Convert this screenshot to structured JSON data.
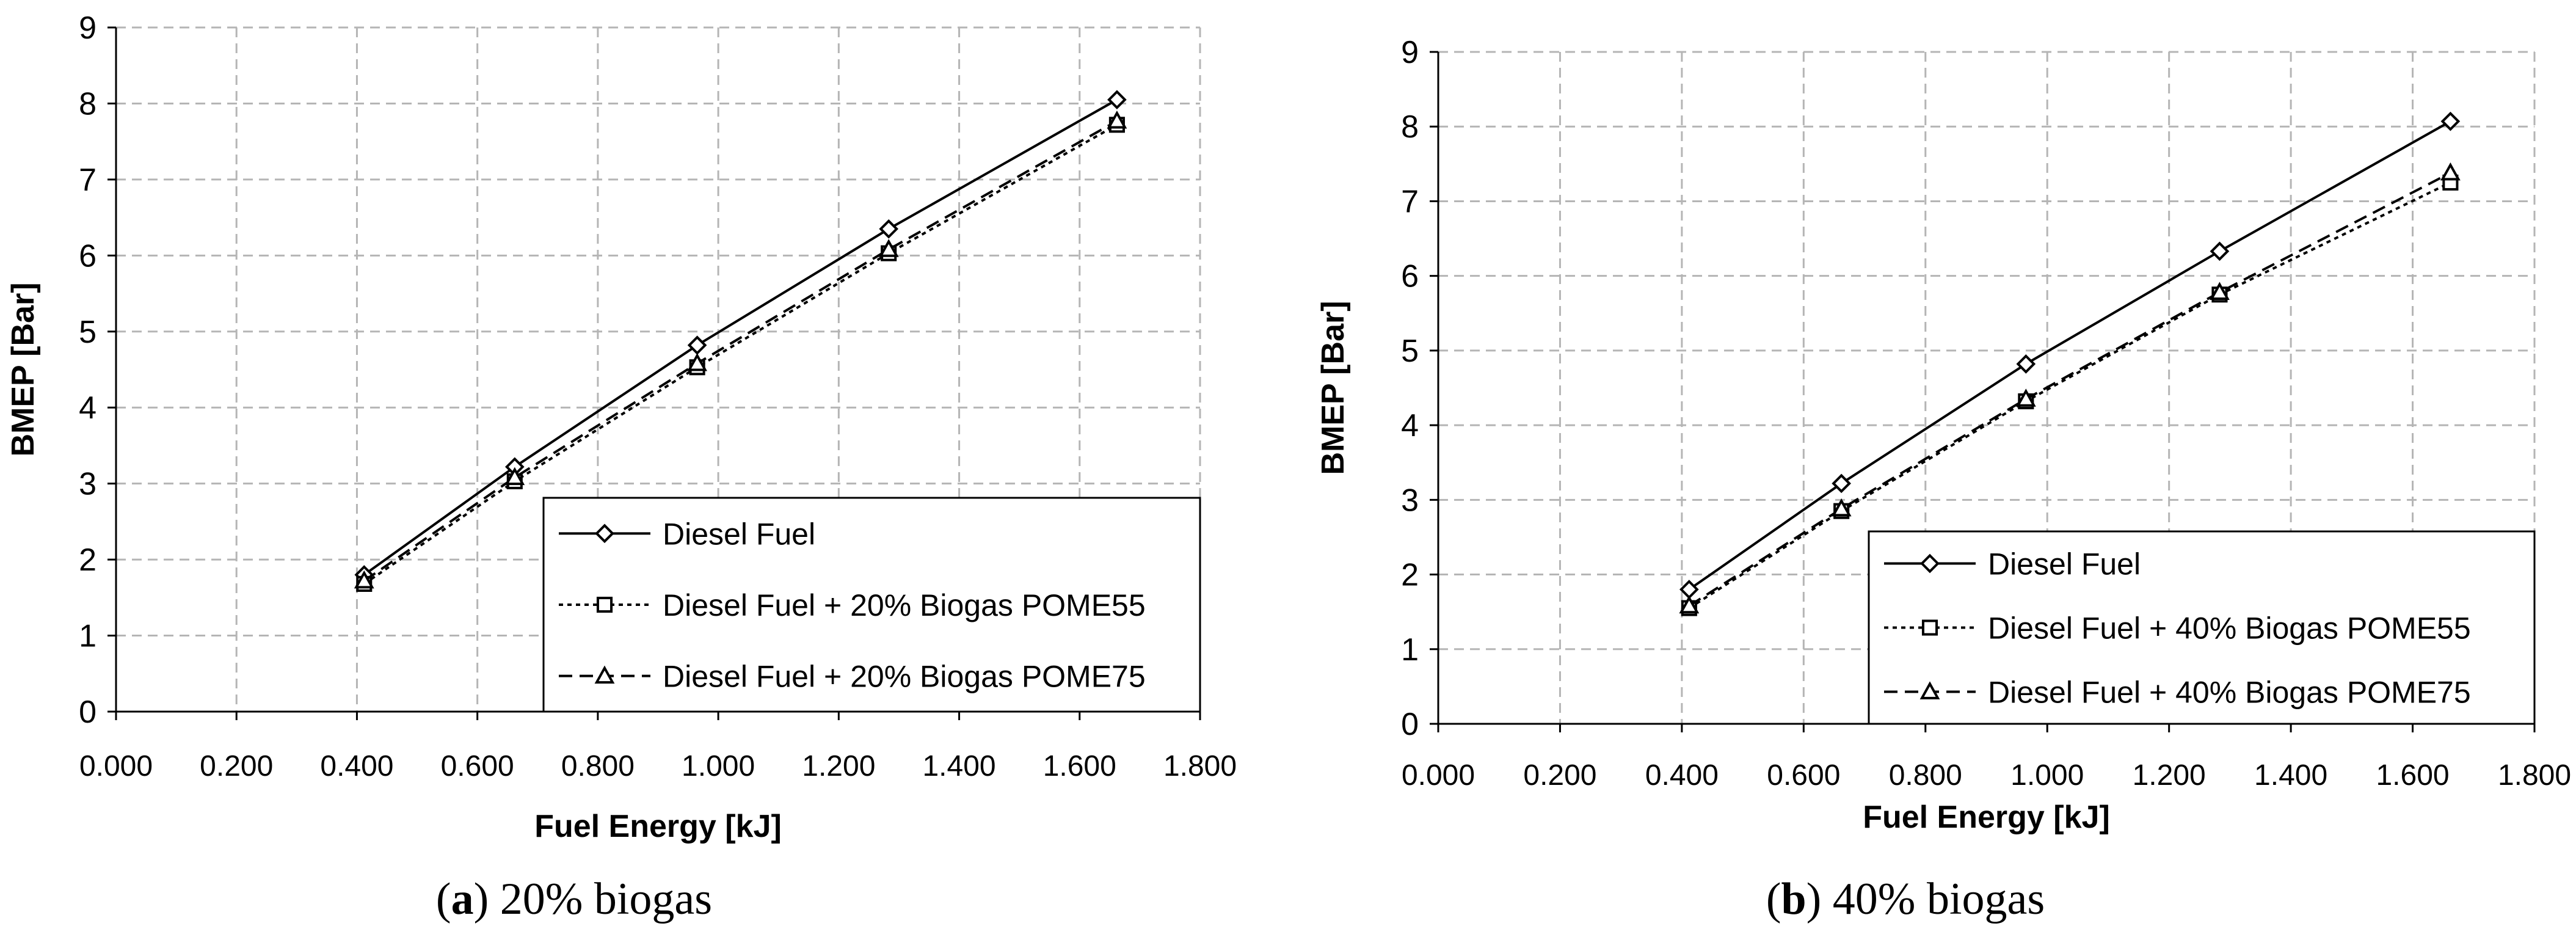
{
  "chart_data": [
    {
      "type": "line",
      "panel": "a",
      "caption_label": "a",
      "caption_text": " 20% biogas",
      "xlabel": "Fuel Energy [kJ]",
      "ylabel": "BMEP [Bar]",
      "xlim": [
        0,
        1.8
      ],
      "ylim": [
        0,
        9
      ],
      "xticks": [
        "0.000",
        "0.200",
        "0.400",
        "0.600",
        "0.800",
        "1.000",
        "1.200",
        "1.400",
        "1.600",
        "1.800"
      ],
      "yticks": [
        "0",
        "1",
        "2",
        "3",
        "4",
        "5",
        "6",
        "7",
        "8",
        "9"
      ],
      "grid": true,
      "legend_position": "bottom-right",
      "series": [
        {
          "name": "Diesel Fuel",
          "marker": "diamond",
          "dash": "solid",
          "x": [
            0.412,
            0.662,
            0.965,
            1.283,
            1.662
          ],
          "y": [
            1.8,
            3.22,
            4.82,
            6.35,
            8.05
          ]
        },
        {
          "name": "Diesel Fuel + 20% Biogas POME55",
          "marker": "square",
          "dash": "dotted",
          "x": [
            0.412,
            0.662,
            0.965,
            1.283,
            1.662
          ],
          "y": [
            1.68,
            3.03,
            4.53,
            6.03,
            7.72
          ]
        },
        {
          "name": "Diesel Fuel + 20% Biogas POME75",
          "marker": "triangle",
          "dash": "dashed",
          "x": [
            0.412,
            0.662,
            0.965,
            1.283,
            1.662
          ],
          "y": [
            1.72,
            3.08,
            4.58,
            6.08,
            7.77
          ]
        }
      ]
    },
    {
      "type": "line",
      "panel": "b",
      "caption_label": "b",
      "caption_text": " 40% biogas",
      "xlabel": "Fuel Energy [kJ]",
      "ylabel": "BMEP [Bar]",
      "xlim": [
        0,
        1.8
      ],
      "ylim": [
        0,
        9
      ],
      "xticks": [
        "0.000",
        "0.200",
        "0.400",
        "0.600",
        "0.800",
        "1.000",
        "1.200",
        "1.400",
        "1.600",
        "1.800"
      ],
      "yticks": [
        "0",
        "1",
        "2",
        "3",
        "4",
        "5",
        "6",
        "7",
        "8",
        "9"
      ],
      "grid": true,
      "legend_position": "bottom-right",
      "series": [
        {
          "name": "Diesel Fuel",
          "marker": "diamond",
          "dash": "solid",
          "x": [
            0.412,
            0.662,
            0.965,
            1.283,
            1.662
          ],
          "y": [
            1.8,
            3.22,
            4.82,
            6.33,
            8.07
          ]
        },
        {
          "name": "Diesel Fuel + 40% Biogas POME55",
          "marker": "square",
          "dash": "dotted",
          "x": [
            0.412,
            0.662,
            0.965,
            1.283,
            1.662
          ],
          "y": [
            1.55,
            2.85,
            4.32,
            5.75,
            7.25
          ]
        },
        {
          "name": "Diesel Fuel + 40% Biogas POME75",
          "marker": "triangle",
          "dash": "dashed",
          "x": [
            0.412,
            0.662,
            0.965,
            1.283,
            1.662
          ],
          "y": [
            1.58,
            2.88,
            4.35,
            5.78,
            7.38
          ]
        }
      ]
    }
  ]
}
